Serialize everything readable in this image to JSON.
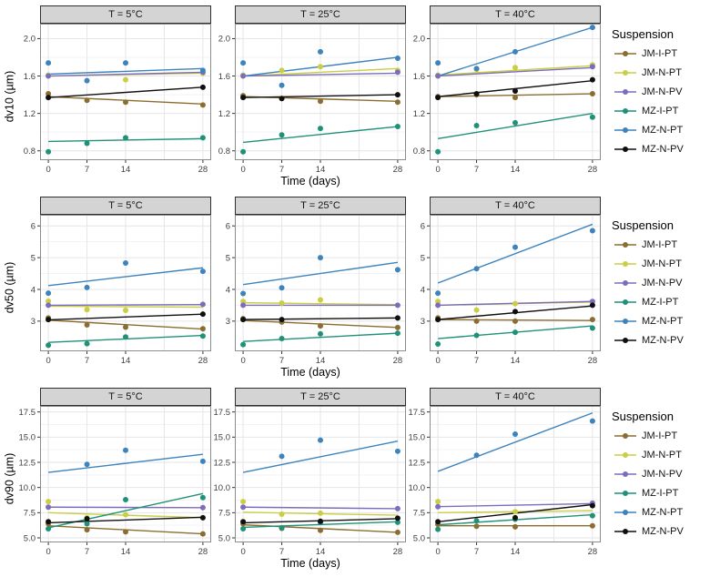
{
  "figure": {
    "legend": {
      "title": "Suspension",
      "position": "right",
      "series": [
        {
          "name": "JM-I-PT",
          "color": "#8c6d31"
        },
        {
          "name": "JM-N-PT",
          "color": "#c9ce44"
        },
        {
          "name": "JM-N-PV",
          "color": "#7d6cbc"
        },
        {
          "name": "MZ-I-PT",
          "color": "#1f9178"
        },
        {
          "name": "MZ-N-PT",
          "color": "#3d83bd"
        },
        {
          "name": "MZ-N-PV",
          "color": "#0f0f0f"
        }
      ]
    },
    "styles": {
      "strip_bg": "#d4d4d4",
      "grid_major": "#e6e6ea",
      "grid_minor": "#f3f3f6",
      "panel_border": "#8c8c8c",
      "tick": "#333333"
    },
    "xgrid": [
      0,
      7,
      14,
      21,
      28
    ]
  },
  "chart_data": [
    {
      "type": "scatter",
      "id": "dv10",
      "ylabel": "dv10 (µm)",
      "xlabel": "Time (days)",
      "x": [
        0,
        7,
        14,
        28
      ],
      "xtick_labels": [
        "0",
        "7",
        "14",
        "28"
      ],
      "ylim": [
        0.7,
        2.16
      ],
      "yticks": [
        0.8,
        1.2,
        1.6,
        2.0
      ],
      "ytick_labels": [
        "0.8",
        "1.2",
        "1.6",
        "2.0"
      ],
      "grid": true,
      "facets": [
        {
          "id": "t5c",
          "title": "T = 5°C",
          "series": [
            {
              "name": "JM-I-PT",
              "points": [
                1.41,
                1.34,
                1.32,
                1.29
              ],
              "trend": [
                1.38,
                1.3
              ]
            },
            {
              "name": "JM-N-PT",
              "points": [
                1.61,
                null,
                1.56,
                1.63
              ],
              "trend": [
                1.6,
                1.63
              ]
            },
            {
              "name": "JM-N-PV",
              "points": [
                1.6,
                null,
                null,
                1.64
              ],
              "trend": [
                1.6,
                1.64
              ]
            },
            {
              "name": "MZ-I-PT",
              "points": [
                0.79,
                0.88,
                0.94,
                0.94
              ],
              "trend": [
                0.9,
                0.93
              ]
            },
            {
              "name": "MZ-N-PT",
              "points": [
                1.74,
                1.55,
                1.74,
                1.66
              ],
              "trend": [
                1.62,
                1.68
              ]
            },
            {
              "name": "MZ-N-PV",
              "points": [
                1.37,
                null,
                null,
                1.48
              ],
              "trend": [
                1.37,
                1.48
              ]
            }
          ]
        },
        {
          "id": "t25c",
          "title": "T = 25°C",
          "series": [
            {
              "name": "JM-I-PT",
              "points": [
                1.39,
                1.36,
                1.33,
                1.32
              ],
              "trend": [
                1.38,
                1.33
              ]
            },
            {
              "name": "JM-N-PT",
              "points": [
                1.61,
                1.66,
                1.7,
                1.66
              ],
              "trend": [
                1.6,
                1.68
              ]
            },
            {
              "name": "JM-N-PV",
              "points": [
                1.6,
                null,
                null,
                1.64
              ],
              "trend": [
                1.6,
                1.63
              ]
            },
            {
              "name": "MZ-I-PT",
              "points": [
                0.79,
                0.97,
                1.04,
                1.06
              ],
              "trend": [
                0.89,
                1.06
              ]
            },
            {
              "name": "MZ-N-PT",
              "points": [
                1.74,
                1.5,
                1.86,
                1.79
              ],
              "trend": [
                1.6,
                1.8
              ]
            },
            {
              "name": "MZ-N-PV",
              "points": [
                1.37,
                1.36,
                null,
                1.4
              ],
              "trend": [
                1.37,
                1.4
              ]
            }
          ]
        },
        {
          "id": "t40c",
          "title": "T = 40°C",
          "series": [
            {
              "name": "JM-I-PT",
              "points": [
                1.38,
                1.4,
                1.37,
                1.41
              ],
              "trend": [
                1.38,
                1.41
              ]
            },
            {
              "name": "JM-N-PT",
              "points": [
                1.61,
                1.67,
                1.69,
                1.72
              ],
              "trend": [
                1.61,
                1.71
              ]
            },
            {
              "name": "JM-N-PV",
              "points": [
                1.6,
                null,
                null,
                1.7
              ],
              "trend": [
                1.6,
                1.69
              ]
            },
            {
              "name": "MZ-I-PT",
              "points": [
                0.79,
                1.07,
                1.1,
                1.16
              ],
              "trend": [
                0.93,
                1.2
              ]
            },
            {
              "name": "MZ-N-PT",
              "points": [
                1.74,
                1.68,
                1.86,
                2.12
              ],
              "trend": [
                1.6,
                2.12
              ]
            },
            {
              "name": "MZ-N-PV",
              "points": [
                1.37,
                1.41,
                1.44,
                1.56
              ],
              "trend": [
                1.38,
                1.55
              ]
            }
          ]
        }
      ]
    },
    {
      "type": "scatter",
      "id": "dv50",
      "ylabel": "dv50 (µm)",
      "xlabel": "Time (days)",
      "x": [
        0,
        7,
        14,
        28
      ],
      "xtick_labels": [
        "0",
        "7",
        "14",
        "28"
      ],
      "ylim": [
        2.05,
        6.35
      ],
      "yticks": [
        3,
        4,
        5,
        6
      ],
      "ytick_labels": [
        "3",
        "4",
        "5",
        "6"
      ],
      "grid": true,
      "facets": [
        {
          "id": "t5c",
          "title": "T = 5°C",
          "series": [
            {
              "name": "JM-I-PT",
              "points": [
                3.1,
                2.88,
                2.81,
                2.76
              ],
              "trend": [
                3.03,
                2.75
              ]
            },
            {
              "name": "JM-N-PT",
              "points": [
                3.63,
                3.36,
                3.34,
                null
              ],
              "trend": [
                3.47,
                3.44
              ]
            },
            {
              "name": "JM-N-PV",
              "points": [
                3.5,
                null,
                null,
                3.53
              ],
              "trend": [
                3.5,
                3.52
              ]
            },
            {
              "name": "MZ-I-PT",
              "points": [
                2.24,
                2.29,
                2.5,
                2.53
              ],
              "trend": [
                2.33,
                2.55
              ]
            },
            {
              "name": "MZ-N-PT",
              "points": [
                3.88,
                4.06,
                4.83,
                4.57
              ],
              "trend": [
                4.12,
                4.68
              ]
            },
            {
              "name": "MZ-N-PV",
              "points": [
                3.05,
                null,
                null,
                3.22
              ],
              "trend": [
                3.04,
                3.22
              ]
            }
          ]
        },
        {
          "id": "t25c",
          "title": "T = 25°C",
          "series": [
            {
              "name": "JM-I-PT",
              "points": [
                3.08,
                2.97,
                2.85,
                2.8
              ],
              "trend": [
                3.02,
                2.8
              ]
            },
            {
              "name": "JM-N-PT",
              "points": [
                3.62,
                3.57,
                3.67,
                null
              ],
              "trend": [
                3.58,
                3.52
              ]
            },
            {
              "name": "JM-N-PV",
              "points": [
                3.5,
                null,
                null,
                3.5
              ],
              "trend": [
                3.5,
                3.5
              ]
            },
            {
              "name": "MZ-I-PT",
              "points": [
                2.26,
                2.45,
                2.6,
                2.62
              ],
              "trend": [
                2.36,
                2.62
              ]
            },
            {
              "name": "MZ-N-PT",
              "points": [
                3.87,
                4.05,
                5.0,
                4.62
              ],
              "trend": [
                4.15,
                4.85
              ]
            },
            {
              "name": "MZ-N-PV",
              "points": [
                3.05,
                3.05,
                null,
                3.1
              ],
              "trend": [
                3.05,
                3.1
              ]
            }
          ]
        },
        {
          "id": "t40c",
          "title": "T = 40°C",
          "series": [
            {
              "name": "JM-I-PT",
              "points": [
                3.1,
                3.0,
                3.0,
                3.05
              ],
              "trend": [
                3.05,
                3.02
              ]
            },
            {
              "name": "JM-N-PT",
              "points": [
                3.62,
                3.35,
                3.55,
                null
              ],
              "trend": [
                3.5,
                3.6
              ]
            },
            {
              "name": "JM-N-PV",
              "points": [
                3.5,
                null,
                null,
                3.62
              ],
              "trend": [
                3.5,
                3.62
              ]
            },
            {
              "name": "MZ-I-PT",
              "points": [
                2.28,
                2.55,
                2.65,
                2.78
              ],
              "trend": [
                2.45,
                2.85
              ]
            },
            {
              "name": "MZ-N-PT",
              "points": [
                3.88,
                4.65,
                5.33,
                5.85
              ],
              "trend": [
                4.2,
                6.05
              ]
            },
            {
              "name": "MZ-N-PV",
              "points": [
                3.05,
                null,
                3.3,
                3.5
              ],
              "trend": [
                3.05,
                3.48
              ]
            }
          ]
        }
      ]
    },
    {
      "type": "scatter",
      "id": "dv90",
      "ylabel": "dv90 (µm)",
      "xlabel": "Time (days)",
      "x": [
        0,
        7,
        14,
        28
      ],
      "xtick_labels": [
        "0",
        "7",
        "14",
        "28"
      ],
      "ylim": [
        4.55,
        18.1
      ],
      "yticks": [
        5.0,
        7.5,
        10.0,
        12.5,
        15.0,
        17.5
      ],
      "ytick_labels": [
        "5.0",
        "7.5",
        "10.0",
        "12.5",
        "15.0",
        "17.5"
      ],
      "grid": true,
      "facets": [
        {
          "id": "t5c",
          "title": "T = 5°C",
          "series": [
            {
              "name": "JM-I-PT",
              "points": [
                6.4,
                5.8,
                5.6,
                5.4
              ],
              "trend": [
                6.2,
                5.4
              ]
            },
            {
              "name": "JM-N-PT",
              "points": [
                8.6,
                7.0,
                7.3,
                null
              ],
              "trend": [
                7.5,
                7.0
              ]
            },
            {
              "name": "JM-N-PV",
              "points": [
                8.05,
                null,
                null,
                8.0
              ],
              "trend": [
                8.05,
                8.0
              ]
            },
            {
              "name": "MZ-I-PT",
              "points": [
                5.9,
                6.4,
                8.8,
                9.0
              ],
              "trend": [
                6.0,
                9.4
              ]
            },
            {
              "name": "MZ-N-PT",
              "points": [
                null,
                12.3,
                13.7,
                12.6
              ],
              "trend": [
                11.5,
                13.3
              ]
            },
            {
              "name": "MZ-N-PV",
              "points": [
                6.6,
                6.9,
                null,
                7.0
              ],
              "trend": [
                6.5,
                7.05
              ]
            }
          ]
        },
        {
          "id": "t25c",
          "title": "T = 25°C",
          "series": [
            {
              "name": "JM-I-PT",
              "points": [
                6.4,
                5.95,
                5.75,
                5.55
              ],
              "trend": [
                6.3,
                5.55
              ]
            },
            {
              "name": "JM-N-PT",
              "points": [
                8.6,
                7.35,
                7.45,
                null
              ],
              "trend": [
                7.55,
                7.25
              ]
            },
            {
              "name": "JM-N-PV",
              "points": [
                8.05,
                null,
                null,
                7.9
              ],
              "trend": [
                8.05,
                7.9
              ]
            },
            {
              "name": "MZ-I-PT",
              "points": [
                5.9,
                6.0,
                6.55,
                6.55
              ],
              "trend": [
                6.05,
                6.6
              ]
            },
            {
              "name": "MZ-N-PT",
              "points": [
                null,
                13.1,
                14.7,
                13.6
              ],
              "trend": [
                11.5,
                14.6
              ]
            },
            {
              "name": "MZ-N-PV",
              "points": [
                6.6,
                null,
                6.65,
                6.95
              ],
              "trend": [
                6.5,
                6.9
              ]
            }
          ]
        },
        {
          "id": "t40c",
          "title": "T = 40°C",
          "series": [
            {
              "name": "JM-I-PT",
              "points": [
                6.35,
                6.15,
                6.1,
                6.2
              ],
              "trend": [
                6.2,
                6.2
              ]
            },
            {
              "name": "JM-N-PT",
              "points": [
                8.6,
                null,
                7.6,
                null
              ],
              "trend": [
                7.5,
                7.7
              ]
            },
            {
              "name": "JM-N-PV",
              "points": [
                8.1,
                null,
                null,
                8.45
              ],
              "trend": [
                8.1,
                8.4
              ]
            },
            {
              "name": "MZ-I-PT",
              "points": [
                5.85,
                6.7,
                6.85,
                7.2
              ],
              "trend": [
                6.3,
                7.3
              ]
            },
            {
              "name": "MZ-N-PT",
              "points": [
                null,
                13.2,
                15.3,
                16.6
              ],
              "trend": [
                11.6,
                17.4
              ]
            },
            {
              "name": "MZ-N-PV",
              "points": [
                6.6,
                null,
                7.0,
                8.2
              ],
              "trend": [
                6.6,
                8.3
              ]
            }
          ]
        }
      ]
    }
  ]
}
